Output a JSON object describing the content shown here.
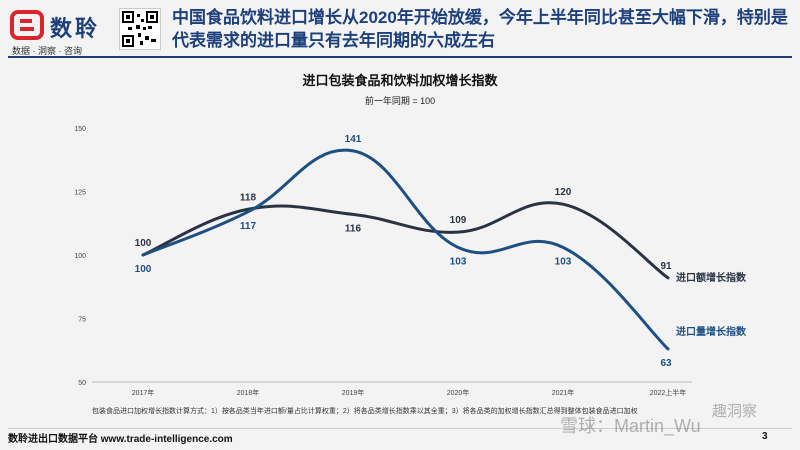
{
  "header": {
    "brand": "数聆",
    "tagline": "数据 · 洞察 · 咨询",
    "title": "中国食品饮料进口增长从2020年开始放缓，今年上半年同比甚至大幅下滑，特别是代表需求的进口量只有去年同期的六成左右"
  },
  "chart_data": {
    "type": "line",
    "title": "进口包装食品和饮料加权增长指数",
    "subtitle": "前一年同期 = 100",
    "x": [
      "2017年",
      "2018年",
      "2019年",
      "2020年",
      "2021年",
      "2022上半年"
    ],
    "ylim": [
      50,
      150
    ],
    "yticks": [
      50,
      75,
      100,
      125,
      150
    ],
    "grid": false,
    "series": [
      {
        "name": "进口额增长指数",
        "values": [
          100,
          118,
          116,
          109,
          120,
          91
        ],
        "color": "#2a3344"
      },
      {
        "name": "进口量增长指数",
        "values": [
          100,
          117,
          141,
          103,
          103,
          63
        ],
        "color": "#1d4f82"
      }
    ]
  },
  "note": "包装食品进口加权增长指数计算方式：1）按各品类当年进口额/量占比计算权重；2）将各品类增长指数乘以其全重；3）将各品类的加权增长指数汇总得到整体包装食品进口加权",
  "footer": {
    "source": "数聆进出口数据平台 www.trade-intelligence.com",
    "page": "3"
  },
  "watermark": {
    "text1": "雪球：Martin_Wu",
    "text2": "趣洞察"
  }
}
